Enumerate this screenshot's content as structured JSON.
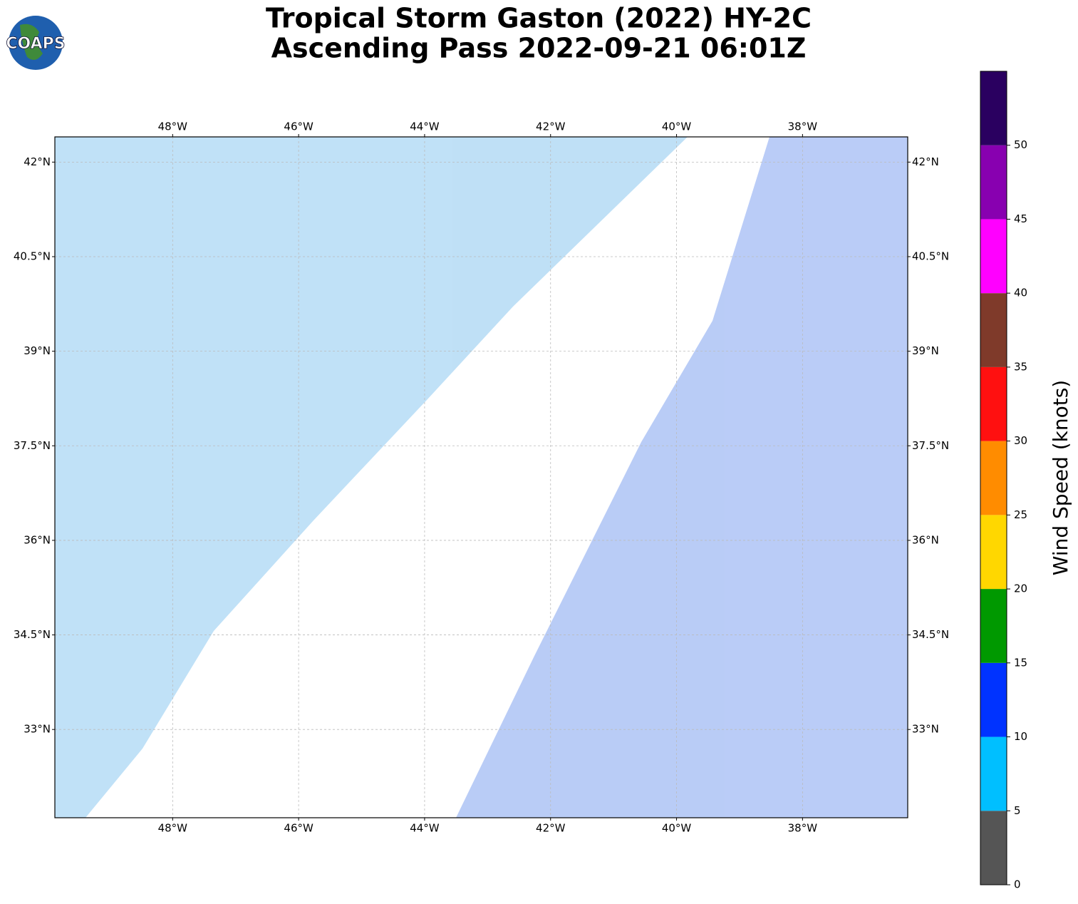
{
  "chart_data": {
    "type": "map",
    "title": "Tropical Storm Gaston (2022) HY-2C",
    "subtitle": "Ascending Pass 2022-09-21 06:01Z",
    "logo": "COAPS",
    "xlim": [
      -49.87,
      -36.33
    ],
    "ylim": [
      31.6,
      42.4
    ],
    "xticks": [
      {
        "value": -48,
        "label": "48°W"
      },
      {
        "value": -46,
        "label": "46°W"
      },
      {
        "value": -44,
        "label": "44°W"
      },
      {
        "value": -42,
        "label": "42°W"
      },
      {
        "value": -40,
        "label": "40°W"
      },
      {
        "value": -38,
        "label": "38°W"
      }
    ],
    "yticks": [
      {
        "value": 33,
        "label": "33°N"
      },
      {
        "value": 34.5,
        "label": "34.5°N"
      },
      {
        "value": 36,
        "label": "36°N"
      },
      {
        "value": 37.5,
        "label": "37.5°N"
      },
      {
        "value": 39,
        "label": "39°N"
      },
      {
        "value": 40.5,
        "label": "40.5°N"
      },
      {
        "value": 42,
        "label": "42°N"
      }
    ],
    "grid": true,
    "colorbar": {
      "label": "Wind Speed (knots)",
      "lim": [
        0,
        55
      ],
      "ticks": [
        0,
        5,
        10,
        15,
        20,
        25,
        30,
        35,
        40,
        45,
        50
      ],
      "bounds": [
        0,
        5,
        10,
        15,
        20,
        25,
        30,
        35,
        40,
        45,
        50,
        55
      ],
      "colors": [
        "#555555",
        "#00bfff",
        "#0033ff",
        "#009900",
        "#ffd700",
        "#ff8c00",
        "#ff1010",
        "#7f3a2a",
        "#ff00ff",
        "#8800b0",
        "#2a0060"
      ]
    }
  }
}
